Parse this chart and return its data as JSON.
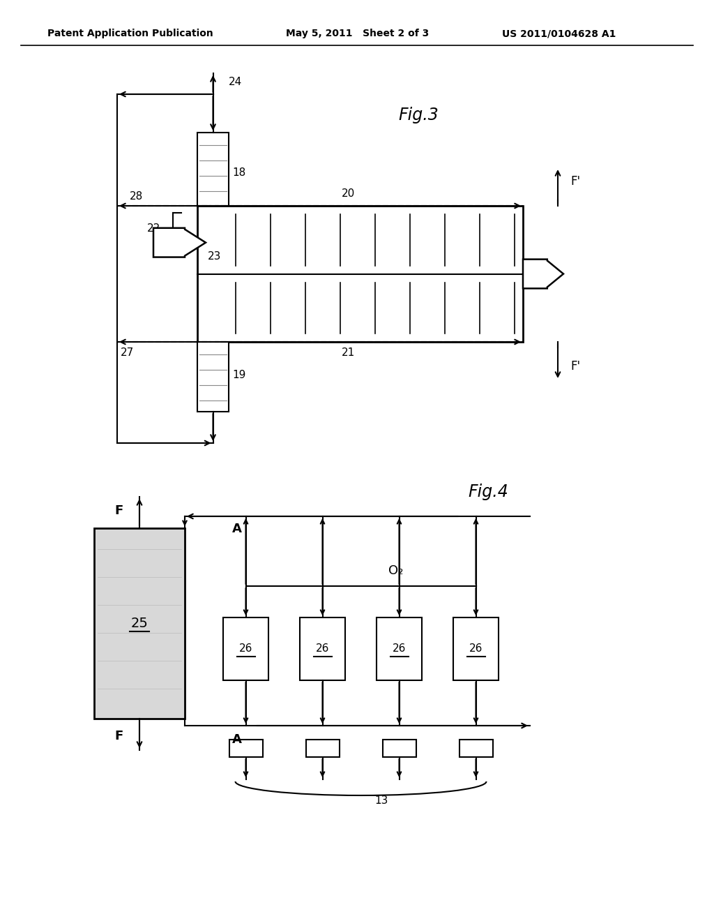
{
  "bg_color": "#ffffff",
  "header_left": "Patent Application Publication",
  "header_mid": "May 5, 2011   Sheet 2 of 3",
  "header_right": "US 2011/0104628 A1",
  "fig3_label": "Fig.3",
  "fig4_label": "Fig.4"
}
